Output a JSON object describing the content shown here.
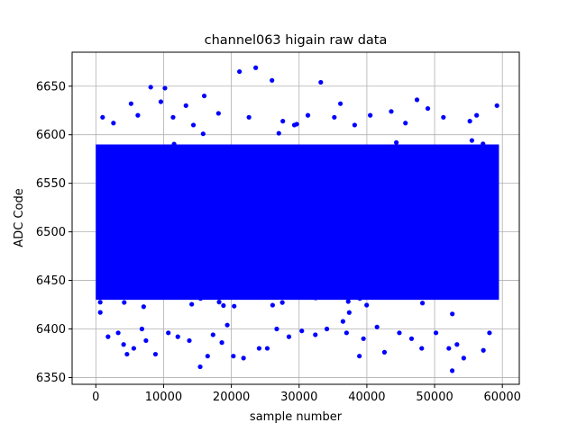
{
  "chart_data": {
    "type": "scatter",
    "title": "channel063 higain raw data",
    "xlabel": "sample number",
    "ylabel": "ADC Code",
    "xlim": [
      -3500,
      62500
    ],
    "ylim": [
      6343,
      6685
    ],
    "x_ticks": [
      0,
      10000,
      20000,
      30000,
      40000,
      50000,
      60000
    ],
    "x_tick_labels": [
      "0",
      "10000",
      "20000",
      "30000",
      "40000",
      "50000",
      "60000"
    ],
    "y_ticks": [
      6350,
      6400,
      6450,
      6500,
      6550,
      6600,
      6650
    ],
    "y_tick_labels": [
      "6350",
      "6400",
      "6450",
      "6500",
      "6550",
      "6600",
      "6650"
    ],
    "grid": true,
    "marker_color": "#0000ff",
    "marker": "circle",
    "series": [
      {
        "core_band": {
          "x_range": [
            0,
            59500
          ],
          "y_range": [
            6430,
            6590
          ],
          "description_only": false
        },
        "outliers": [
          {
            "x": 1000,
            "y": 6618
          },
          {
            "x": 1800,
            "y": 6392
          },
          {
            "x": 2600,
            "y": 6612
          },
          {
            "x": 3300,
            "y": 6396
          },
          {
            "x": 4100,
            "y": 6384
          },
          {
            "x": 4600,
            "y": 6374
          },
          {
            "x": 5200,
            "y": 6632
          },
          {
            "x": 5600,
            "y": 6380
          },
          {
            "x": 6200,
            "y": 6620
          },
          {
            "x": 6800,
            "y": 6400
          },
          {
            "x": 7400,
            "y": 6388
          },
          {
            "x": 8100,
            "y": 6649
          },
          {
            "x": 8800,
            "y": 6374
          },
          {
            "x": 9600,
            "y": 6634
          },
          {
            "x": 10200,
            "y": 6648
          },
          {
            "x": 10700,
            "y": 6396
          },
          {
            "x": 11400,
            "y": 6618
          },
          {
            "x": 12100,
            "y": 6392
          },
          {
            "x": 13300,
            "y": 6630
          },
          {
            "x": 13800,
            "y": 6388
          },
          {
            "x": 14400,
            "y": 6610
          },
          {
            "x": 15400,
            "y": 6361
          },
          {
            "x": 16000,
            "y": 6640
          },
          {
            "x": 16500,
            "y": 6372
          },
          {
            "x": 17300,
            "y": 6394
          },
          {
            "x": 18100,
            "y": 6622
          },
          {
            "x": 18600,
            "y": 6386
          },
          {
            "x": 19400,
            "y": 6404
          },
          {
            "x": 20300,
            "y": 6372
          },
          {
            "x": 21200,
            "y": 6665
          },
          {
            "x": 21800,
            "y": 6370
          },
          {
            "x": 22600,
            "y": 6618
          },
          {
            "x": 23600,
            "y": 6669
          },
          {
            "x": 24100,
            "y": 6380
          },
          {
            "x": 25300,
            "y": 6380
          },
          {
            "x": 26000,
            "y": 6656
          },
          {
            "x": 26700,
            "y": 6400
          },
          {
            "x": 27600,
            "y": 6614
          },
          {
            "x": 28500,
            "y": 6392
          },
          {
            "x": 29300,
            "y": 6610
          },
          {
            "x": 30400,
            "y": 6398
          },
          {
            "x": 31300,
            "y": 6620
          },
          {
            "x": 32400,
            "y": 6394
          },
          {
            "x": 33200,
            "y": 6654
          },
          {
            "x": 34100,
            "y": 6400
          },
          {
            "x": 35200,
            "y": 6618
          },
          {
            "x": 36100,
            "y": 6632
          },
          {
            "x": 37000,
            "y": 6396
          },
          {
            "x": 38200,
            "y": 6610
          },
          {
            "x": 38900,
            "y": 6372
          },
          {
            "x": 39500,
            "y": 6390
          },
          {
            "x": 40500,
            "y": 6620
          },
          {
            "x": 41500,
            "y": 6402
          },
          {
            "x": 42600,
            "y": 6376
          },
          {
            "x": 43600,
            "y": 6624
          },
          {
            "x": 44800,
            "y": 6396
          },
          {
            "x": 45700,
            "y": 6612
          },
          {
            "x": 46600,
            "y": 6390
          },
          {
            "x": 47400,
            "y": 6636
          },
          {
            "x": 48100,
            "y": 6380
          },
          {
            "x": 49000,
            "y": 6627
          },
          {
            "x": 50200,
            "y": 6396
          },
          {
            "x": 51300,
            "y": 6618
          },
          {
            "x": 52100,
            "y": 6380
          },
          {
            "x": 52600,
            "y": 6357
          },
          {
            "x": 53300,
            "y": 6384
          },
          {
            "x": 54300,
            "y": 6370
          },
          {
            "x": 55200,
            "y": 6614
          },
          {
            "x": 56200,
            "y": 6620
          },
          {
            "x": 57200,
            "y": 6378
          },
          {
            "x": 58100,
            "y": 6396
          },
          {
            "x": 59200,
            "y": 6630
          }
        ]
      }
    ]
  }
}
